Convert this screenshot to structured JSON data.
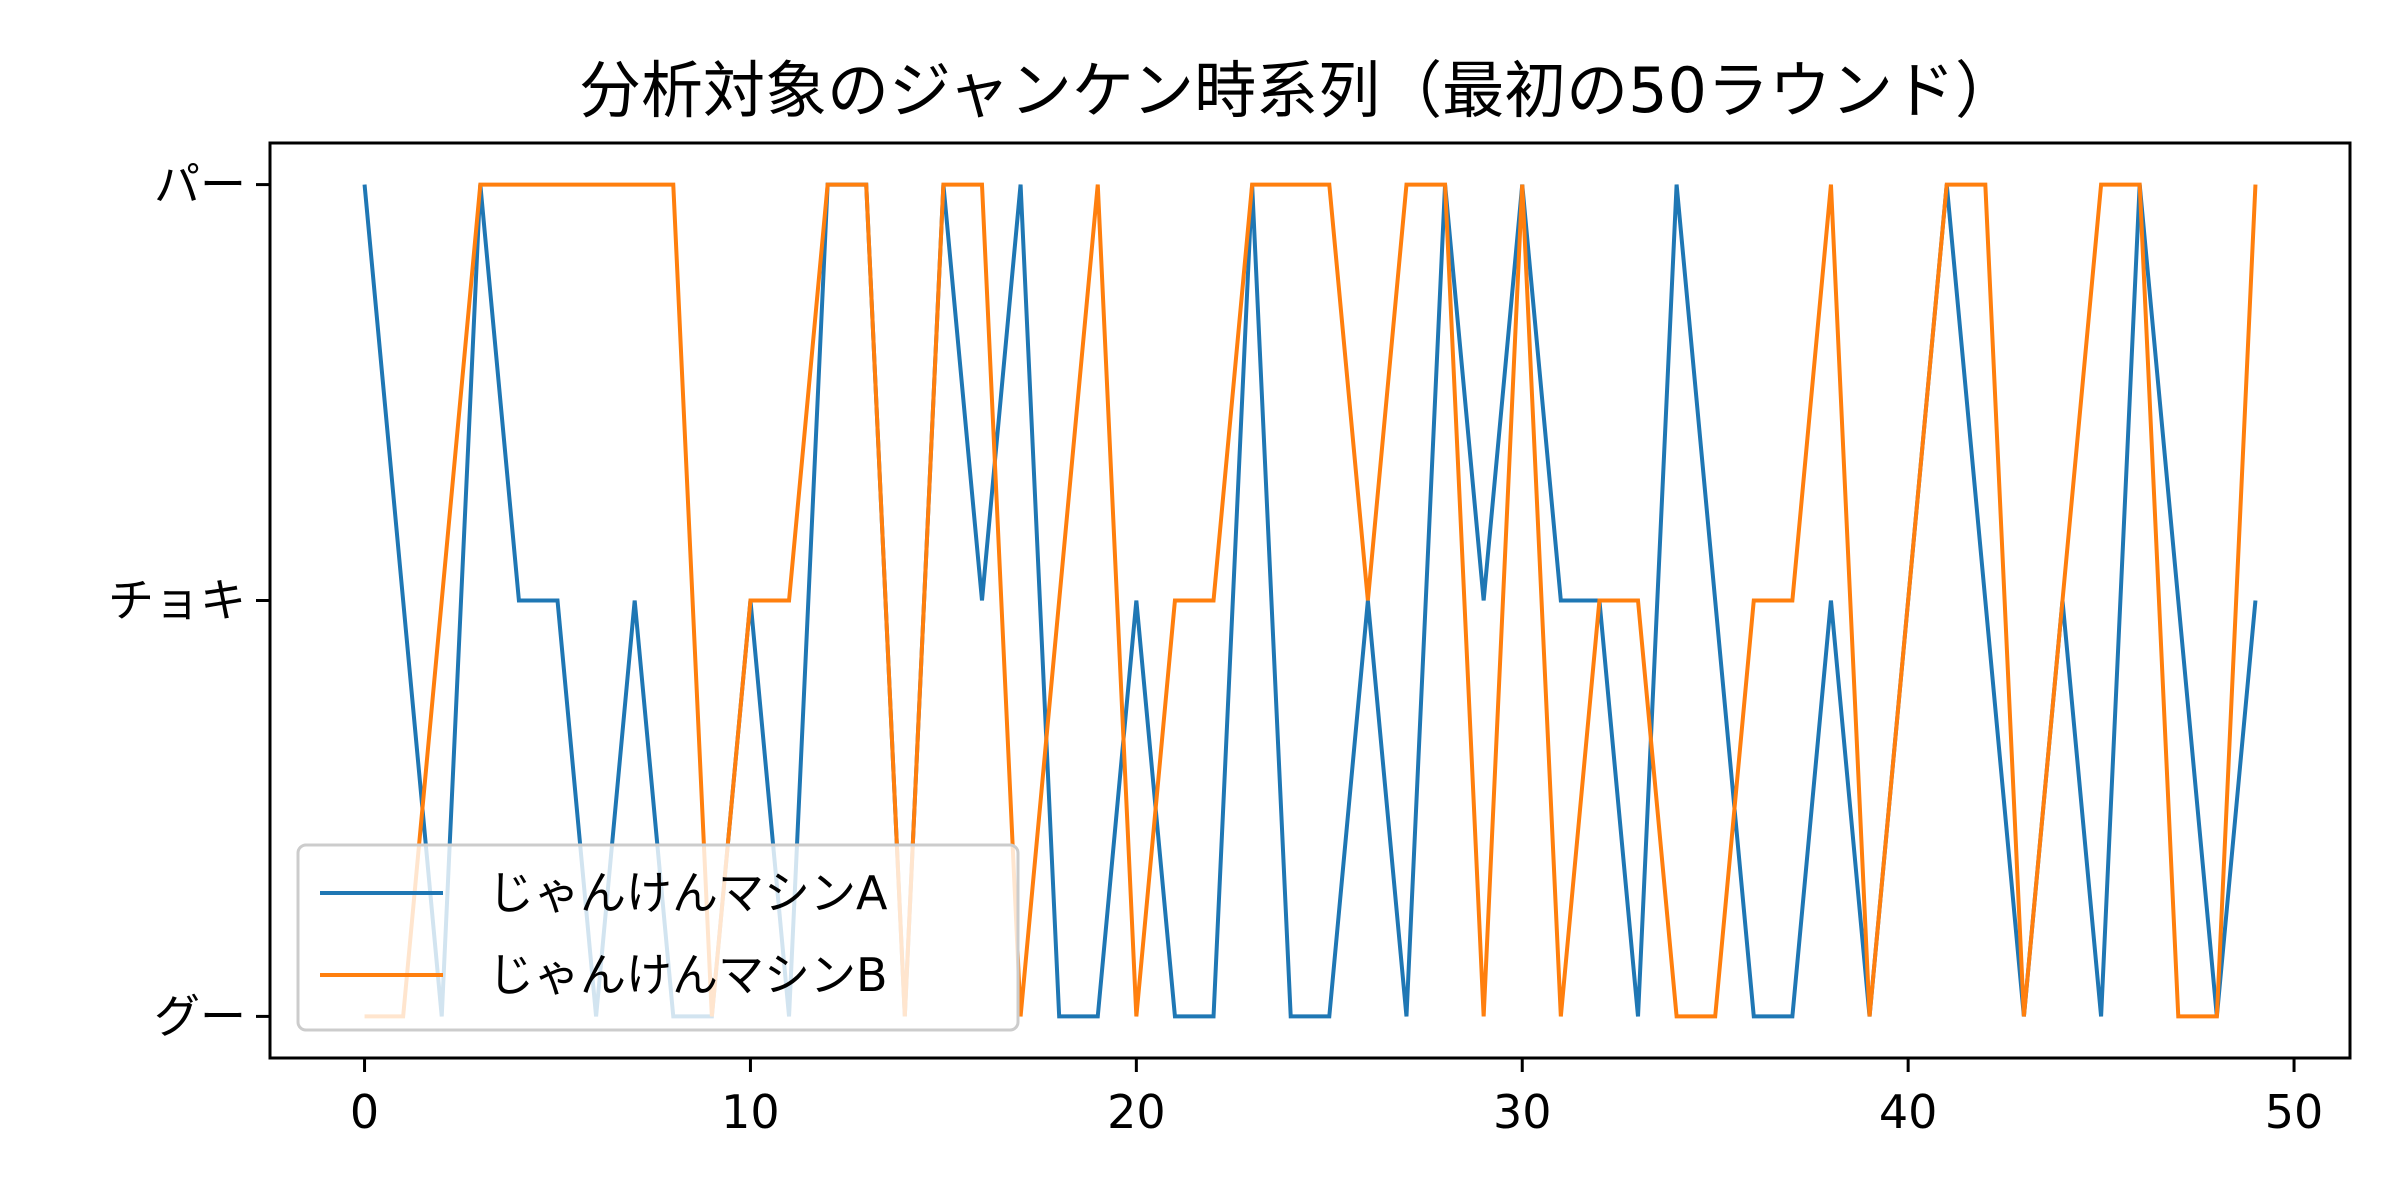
{
  "chart_data": {
    "type": "line",
    "title": "分析対象のジャンケン時系列（最初の50ラウンド）",
    "xlabel": "",
    "ylabel": "",
    "xlim": [
      -2.45,
      51.45
    ],
    "ylim": [
      -0.1,
      2.1
    ],
    "x_ticks": [
      0,
      10,
      20,
      30,
      40,
      50
    ],
    "y_ticks": [
      {
        "value": 0,
        "label": "グー"
      },
      {
        "value": 1,
        "label": "チョキ"
      },
      {
        "value": 2,
        "label": "パー"
      }
    ],
    "grid": false,
    "legend": {
      "position": "lower-left"
    },
    "x": [
      0,
      1,
      2,
      3,
      4,
      5,
      6,
      7,
      8,
      9,
      10,
      11,
      12,
      13,
      14,
      15,
      16,
      17,
      18,
      19,
      20,
      21,
      22,
      23,
      24,
      25,
      26,
      27,
      28,
      29,
      30,
      31,
      32,
      33,
      34,
      35,
      36,
      37,
      38,
      39,
      40,
      41,
      42,
      43,
      44,
      45,
      46,
      47,
      48,
      49
    ],
    "series": [
      {
        "name": "じゃんけんマシンA",
        "color": "#1f77b4",
        "values": [
          2,
          1,
          0,
          2,
          1,
          1,
          0,
          1,
          0,
          0,
          1,
          0,
          2,
          2,
          0,
          2,
          1,
          2,
          0,
          0,
          1,
          0,
          0,
          2,
          0,
          0,
          1,
          0,
          2,
          1,
          2,
          1,
          1,
          0,
          2,
          1,
          0,
          0,
          1,
          0,
          1,
          2,
          1,
          0,
          1,
          0,
          2,
          1,
          0,
          1
        ]
      },
      {
        "name": "じゃんけんマシンB",
        "color": "#ff7f0e",
        "values": [
          0,
          0,
          1,
          2,
          2,
          2,
          2,
          2,
          2,
          0,
          1,
          1,
          2,
          2,
          0,
          2,
          2,
          0,
          1,
          2,
          0,
          1,
          1,
          2,
          2,
          2,
          1,
          2,
          2,
          0,
          2,
          0,
          1,
          1,
          0,
          0,
          1,
          1,
          2,
          0,
          1,
          2,
          2,
          0,
          1,
          2,
          2,
          0,
          0,
          2
        ]
      }
    ]
  }
}
